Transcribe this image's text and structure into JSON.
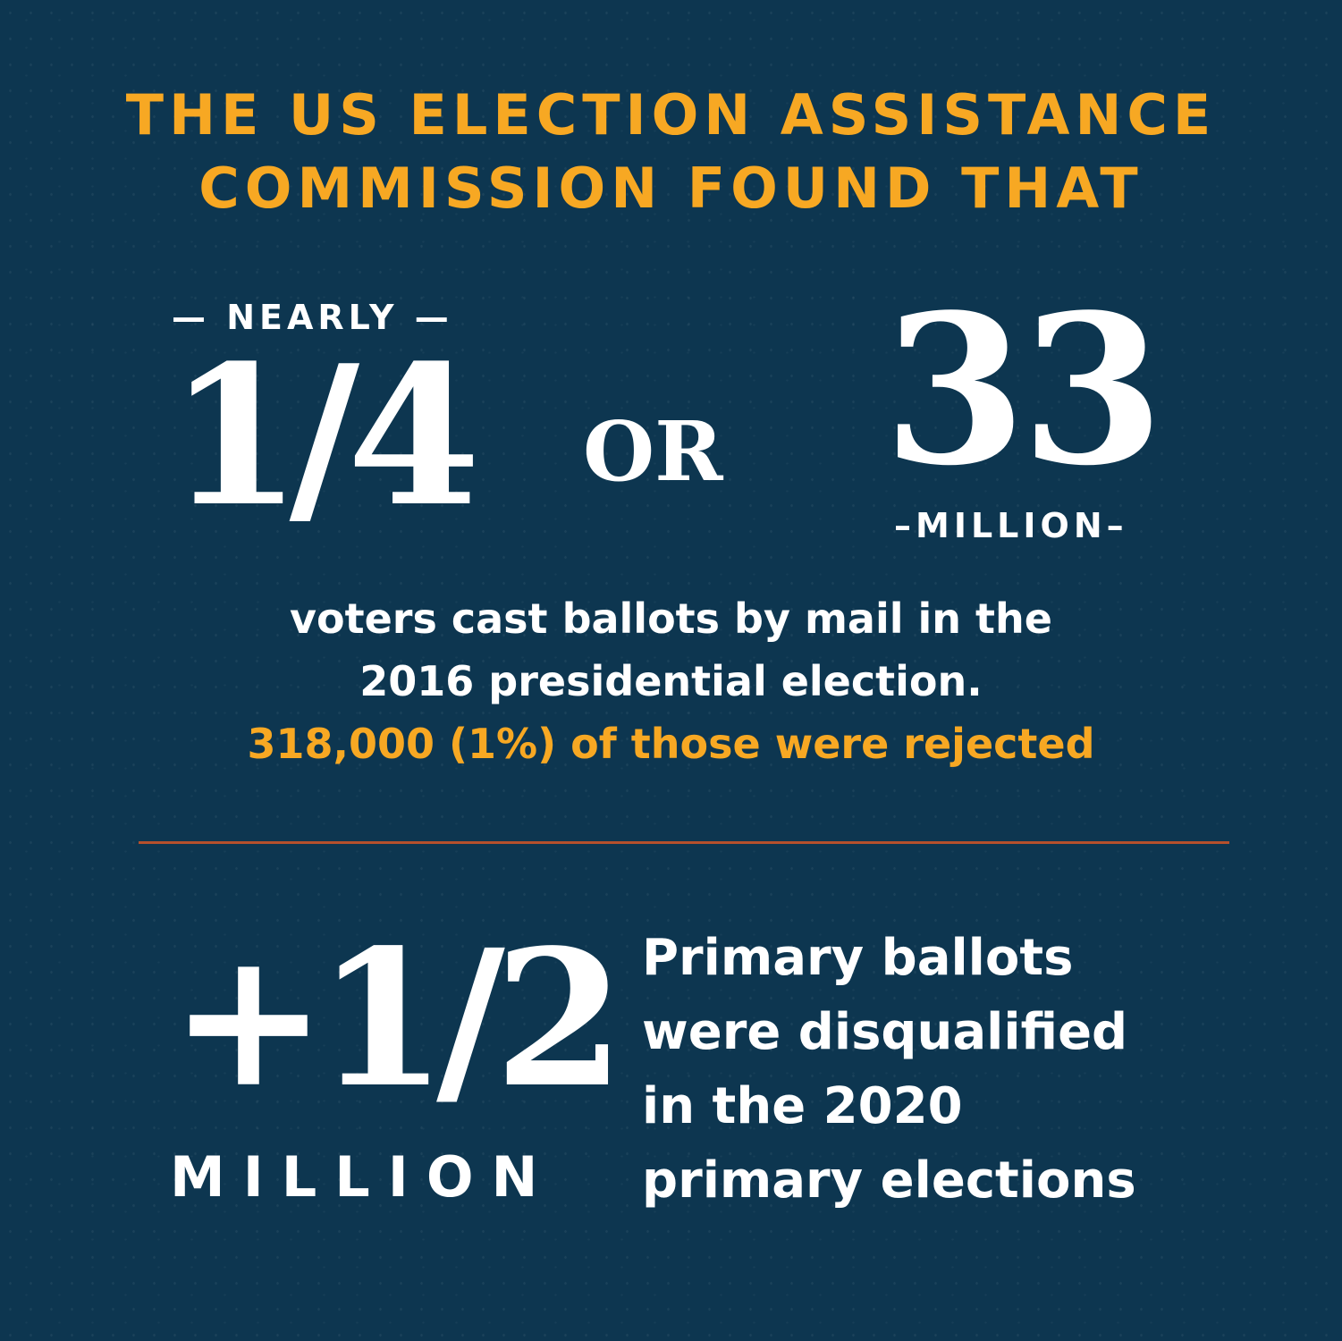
{
  "headline": {
    "line1": "THE US ELECTION ASSISTANCE",
    "line2": "COMMISSION FOUND THAT"
  },
  "stat1": {
    "qualifier": "— NEARLY —",
    "fraction": "1/4",
    "connector": "OR",
    "count": "33",
    "unit": "–MILLION–"
  },
  "description": {
    "line1": "voters cast ballots by mail in the",
    "line2": "2016 presidential election.",
    "highlight": "318,000 (1%) of those were rejected"
  },
  "stat2": {
    "value": "+1/2",
    "unit": "MILLION",
    "line1": "Primary ballots",
    "line2": "were disqualified",
    "line3": "in the 2020",
    "line4": "primary elections"
  },
  "colors": {
    "background": "#0d3650",
    "accent": "#f7a823",
    "divider": "#b5502c",
    "text": "#ffffff"
  }
}
